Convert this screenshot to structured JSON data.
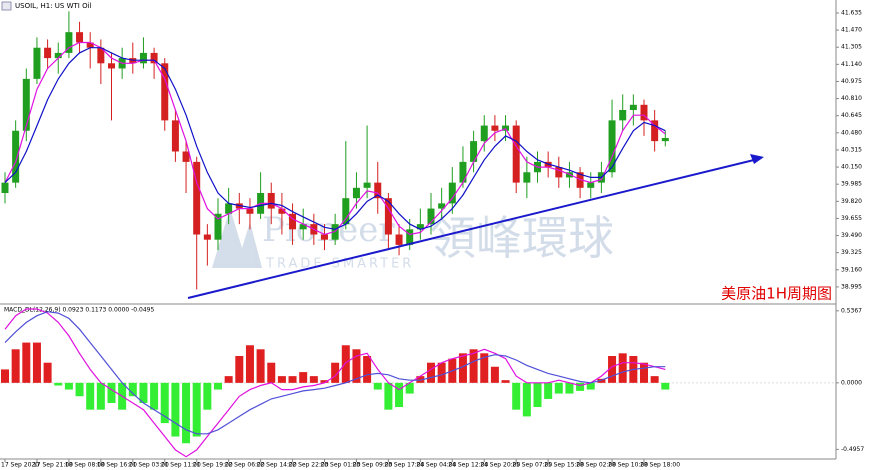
{
  "chart_data": [
    {
      "type": "candlestick",
      "title": "USOIL, H1: US WTI Oil",
      "annotation": "美原油1H周期图",
      "watermark": {
        "brand": "Pioneer",
        "name": "領峰環球",
        "tagline": "TRADE SMARTER"
      },
      "up_color": "#1f9e1f",
      "down_color": "#d42020",
      "open": [
        39.9,
        40.0,
        40.5,
        41.0,
        41.3,
        41.2,
        41.25,
        41.45,
        41.35,
        41.3,
        41.15,
        41.1,
        41.2,
        41.15,
        41.25,
        41.15,
        40.6,
        40.3,
        40.2,
        39.5,
        39.45,
        39.7,
        39.8,
        39.75,
        39.7,
        39.9,
        39.75,
        39.7,
        39.55,
        39.6,
        39.5,
        39.45,
        39.6,
        39.85,
        39.95,
        40.0,
        39.85,
        39.5,
        39.4,
        39.55,
        39.6,
        39.75,
        39.8,
        40.0,
        40.2,
        40.4,
        40.55,
        40.5,
        40.55,
        40.0,
        40.1,
        40.2,
        40.15,
        40.05,
        40.1,
        39.95,
        40.0,
        40.1,
        40.6,
        40.7,
        40.75,
        40.6,
        40.4
      ],
      "high": [
        40.1,
        40.6,
        41.1,
        41.4,
        41.38,
        41.35,
        41.65,
        41.55,
        41.45,
        41.38,
        41.25,
        41.3,
        41.35,
        41.4,
        41.3,
        41.2,
        40.7,
        40.4,
        40.25,
        39.6,
        39.85,
        39.95,
        39.9,
        39.85,
        40.1,
        40.0,
        39.9,
        39.8,
        39.75,
        39.7,
        39.6,
        39.7,
        40.4,
        40.1,
        40.55,
        40.2,
        39.9,
        39.6,
        39.65,
        39.75,
        39.9,
        39.95,
        40.15,
        40.35,
        40.5,
        40.65,
        40.65,
        40.65,
        40.6,
        40.25,
        40.3,
        40.3,
        40.25,
        40.2,
        40.15,
        40.1,
        40.2,
        40.8,
        40.85,
        40.85,
        40.8,
        40.7,
        40.5
      ],
      "low": [
        39.8,
        39.95,
        40.4,
        40.95,
        41.1,
        41.05,
        41.2,
        41.25,
        41.1,
        40.95,
        40.6,
        41.0,
        41.05,
        41.1,
        41.0,
        40.5,
        40.2,
        39.9,
        38.97,
        39.2,
        39.35,
        39.6,
        39.6,
        39.55,
        39.65,
        39.6,
        39.5,
        39.4,
        39.45,
        39.4,
        39.35,
        39.4,
        39.55,
        39.75,
        39.85,
        39.7,
        39.35,
        39.3,
        39.35,
        39.45,
        39.5,
        39.65,
        39.7,
        39.95,
        40.1,
        40.3,
        40.4,
        40.4,
        39.9,
        39.85,
        40.0,
        40.05,
        39.95,
        39.95,
        39.85,
        39.85,
        39.9,
        40.05,
        40.5,
        40.55,
        40.45,
        40.3,
        40.35
      ],
      "close": [
        40.0,
        40.5,
        41.0,
        41.3,
        41.2,
        41.25,
        41.45,
        41.35,
        41.3,
        41.15,
        41.1,
        41.2,
        41.15,
        41.25,
        41.15,
        40.6,
        40.3,
        40.2,
        39.5,
        39.45,
        39.7,
        39.8,
        39.75,
        39.7,
        39.9,
        39.75,
        39.7,
        39.55,
        39.6,
        39.5,
        39.45,
        39.6,
        39.85,
        39.95,
        40.0,
        39.85,
        39.5,
        39.4,
        39.55,
        39.6,
        39.75,
        39.8,
        40.0,
        40.2,
        40.4,
        40.55,
        40.5,
        40.55,
        40.0,
        40.1,
        40.2,
        40.15,
        40.05,
        40.1,
        39.95,
        40.0,
        40.1,
        40.6,
        40.7,
        40.75,
        40.6,
        40.4,
        40.43
      ],
      "series": [
        {
          "color": "#e010e0",
          "values": [
            40.0,
            40.2,
            40.55,
            40.9,
            41.1,
            41.2,
            41.3,
            41.35,
            41.35,
            41.3,
            41.2,
            41.15,
            41.15,
            41.18,
            41.18,
            41.0,
            40.7,
            40.4,
            40.0,
            39.75,
            39.65,
            39.7,
            39.75,
            39.75,
            39.8,
            39.8,
            39.75,
            39.65,
            39.6,
            39.55,
            39.5,
            39.53,
            39.65,
            39.8,
            39.92,
            39.9,
            39.75,
            39.58,
            39.5,
            39.52,
            39.62,
            39.73,
            39.85,
            40.0,
            40.2,
            40.38,
            40.48,
            40.52,
            40.35,
            40.2,
            40.15,
            40.15,
            40.12,
            40.08,
            40.03,
            40.0,
            40.03,
            40.25,
            40.5,
            40.65,
            40.65,
            40.55,
            40.47
          ]
        },
        {
          "color": "#1010c8",
          "values": [
            40.0,
            40.1,
            40.3,
            40.55,
            40.8,
            41.0,
            41.15,
            41.25,
            41.3,
            41.3,
            41.25,
            41.2,
            41.18,
            41.18,
            41.18,
            41.1,
            40.9,
            40.65,
            40.35,
            40.1,
            39.9,
            39.8,
            39.78,
            39.76,
            39.78,
            39.8,
            39.78,
            39.72,
            39.67,
            39.62,
            39.57,
            39.55,
            39.6,
            39.7,
            39.82,
            39.88,
            39.82,
            39.7,
            39.6,
            39.55,
            39.58,
            39.65,
            39.75,
            39.88,
            40.05,
            40.22,
            40.35,
            40.45,
            40.4,
            40.3,
            40.22,
            40.18,
            40.15,
            40.12,
            40.08,
            40.05,
            40.05,
            40.15,
            40.33,
            40.5,
            40.58,
            40.55,
            40.5
          ]
        }
      ],
      "ylim": [
        38.84,
        41.76
      ],
      "yticks": [
        41.635,
        {
          "value": 41.47,
          "label": "41.470"
        },
        41.305,
        {
          "value": 41.14,
          "label": "41.140"
        },
        40.975,
        {
          "value": 40.81,
          "label": "40.810"
        },
        40.645,
        {
          "value": 40.48,
          "label": "40.480"
        },
        40.315,
        {
          "value": 40.15,
          "label": "40.150"
        },
        39.985,
        {
          "value": 39.82,
          "label": "39.820"
        },
        39.655,
        {
          "value": 39.49,
          "label": "39.490"
        },
        39.325,
        {
          "value": 39.16,
          "label": "39.160"
        },
        38.995
      ]
    },
    {
      "type": "macd",
      "title": "MACD_DL(12,26,9) 0.0923 0.1173 0.0000 -0.0495",
      "positive_color": "#e02020",
      "negative_color": "#33ee33",
      "categories": [
        "17 Sep 2020",
        null,
        null,
        "17 Sep 21:00",
        null,
        null,
        "18 Sep 08:00",
        null,
        null,
        "18 Sep 16:00",
        null,
        null,
        "21 Sep 03:00",
        null,
        null,
        "21 Sep 11:00",
        null,
        null,
        "21 Sep 19:00",
        null,
        null,
        "22 Sep 06:00",
        null,
        null,
        "22 Sep 14:00",
        null,
        null,
        "22 Sep 22:00",
        null,
        null,
        "23 Sep 01:00",
        null,
        null,
        "23 Sep 09:00",
        null,
        null,
        "23 Sep 17:00",
        null,
        null,
        "24 Sep 04:00",
        null,
        null,
        "24 Sep 12:00",
        null,
        null,
        "24 Sep 20:00",
        null,
        null,
        "25 Sep 07:00",
        null,
        null,
        "25 Sep 15:00",
        null,
        null,
        "28 Sep 02:00",
        null,
        null,
        "28 Sep 10:00",
        null,
        null,
        "28 Sep 18:00",
        null,
        null
      ],
      "values": [
        0.1,
        0.25,
        0.3,
        0.3,
        0.15,
        -0.02,
        -0.05,
        -0.1,
        -0.2,
        -0.2,
        -0.15,
        -0.2,
        -0.1,
        -0.15,
        -0.2,
        -0.3,
        -0.4,
        -0.45,
        -0.4,
        -0.2,
        -0.05,
        0.05,
        0.2,
        0.28,
        0.25,
        0.15,
        0.05,
        0.05,
        0.08,
        0.05,
        0.02,
        0.15,
        0.28,
        0.25,
        0.2,
        -0.05,
        -0.2,
        -0.18,
        -0.08,
        0.05,
        0.15,
        0.15,
        0.18,
        0.22,
        0.25,
        0.22,
        0.12,
        0.02,
        -0.2,
        -0.25,
        -0.18,
        -0.12,
        -0.08,
        -0.08,
        -0.06,
        -0.05,
        0.03,
        0.2,
        0.22,
        0.2,
        0.15,
        0.05,
        -0.05
      ],
      "series": [
        {
          "color": "#e010e0",
          "values": [
            0.4,
            0.5,
            0.55,
            0.55,
            0.52,
            0.45,
            0.35,
            0.22,
            0.1,
            0.0,
            -0.05,
            -0.1,
            -0.15,
            -0.2,
            -0.3,
            -0.4,
            -0.5,
            -0.55,
            -0.5,
            -0.4,
            -0.3,
            -0.2,
            -0.1,
            -0.05,
            -0.02,
            0.0,
            -0.05,
            -0.05,
            -0.03,
            -0.02,
            0.0,
            0.05,
            0.15,
            0.2,
            0.22,
            0.1,
            0.0,
            -0.05,
            0.0,
            0.05,
            0.1,
            0.15,
            0.18,
            0.2,
            0.22,
            0.25,
            0.22,
            0.18,
            0.05,
            0.0,
            0.0,
            0.0,
            0.02,
            0.0,
            -0.02,
            0.0,
            0.05,
            0.12,
            0.15,
            0.15,
            0.14,
            0.12,
            0.1
          ]
        },
        {
          "color": "#5050d8",
          "values": [
            0.3,
            0.38,
            0.45,
            0.5,
            0.53,
            0.52,
            0.48,
            0.4,
            0.3,
            0.2,
            0.1,
            0.0,
            -0.08,
            -0.15,
            -0.2,
            -0.25,
            -0.3,
            -0.35,
            -0.38,
            -0.38,
            -0.35,
            -0.3,
            -0.25,
            -0.2,
            -0.16,
            -0.12,
            -0.1,
            -0.08,
            -0.06,
            -0.05,
            -0.04,
            -0.02,
            0.0,
            0.03,
            0.06,
            0.07,
            0.06,
            0.03,
            0.02,
            0.02,
            0.04,
            0.06,
            0.09,
            0.12,
            0.16,
            0.19,
            0.21,
            0.2,
            0.17,
            0.13,
            0.1,
            0.07,
            0.05,
            0.03,
            0.01,
            0.0,
            0.02,
            0.05,
            0.08,
            0.1,
            0.11,
            0.12,
            0.12
          ]
        }
      ],
      "ylim": [
        -0.56,
        0.58
      ],
      "yticks": [
        0.5367,
        {
          "value": 0,
          "label": "0.0000"
        },
        -0.4957
      ]
    }
  ]
}
